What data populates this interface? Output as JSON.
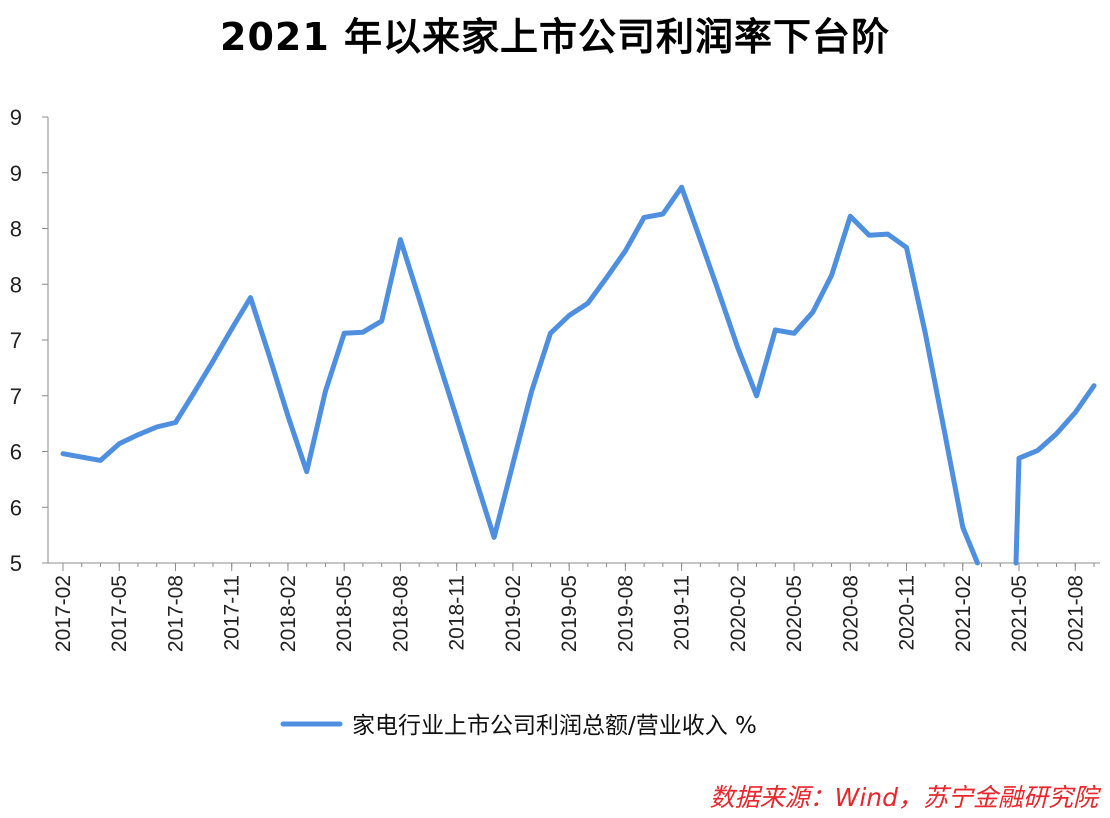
{
  "chart_data": {
    "type": "line",
    "title": "2021 年以来家上市公司利润率下台阶",
    "xlabel": "",
    "ylabel": "",
    "ylim": [
      5,
      9
    ],
    "ytick_labels": [
      "5",
      "6",
      "6",
      "7",
      "7",
      "8",
      "8",
      "9",
      "9"
    ],
    "xtick_labels": [
      "2017-02",
      "2017-05",
      "2017-08",
      "2017-11",
      "2018-02",
      "2018-05",
      "2018-08",
      "2018-11",
      "2019-02",
      "2019-05",
      "2019-08",
      "2019-11",
      "2020-02",
      "2020-05",
      "2020-08",
      "2020-11",
      "2021-02",
      "2021-05",
      "2021-08"
    ],
    "grid": false,
    "legend_position": "bottom",
    "series": [
      {
        "name": "家电行业上市公司利润总额/营业收入 %",
        "color": "#4f8fe0",
        "x": [
          "2017-02",
          "2017-03",
          "2017-04",
          "2017-05",
          "2017-06",
          "2017-07",
          "2017-08",
          "2017-09",
          "2017-10",
          "2017-11",
          "2017-12",
          "2018-01",
          "2018-02",
          "2018-03",
          "2018-04",
          "2018-05",
          "2018-06",
          "2018-07",
          "2018-08",
          "2018-09",
          "2018-10",
          "2018-11",
          "2018-12",
          "2019-01",
          "2019-02",
          "2019-03",
          "2019-04",
          "2019-05",
          "2019-06",
          "2019-07",
          "2019-08",
          "2019-09",
          "2019-10",
          "2019-11",
          "2019-12",
          "2020-01",
          "2020-02",
          "2020-03",
          "2020-04",
          "2020-05",
          "2020-06",
          "2020-07",
          "2020-08",
          "2020-09",
          "2020-10",
          "2020-11",
          "2020-12",
          "2021-01",
          "2021-02",
          "2021-03",
          "2021-04",
          "2021-05",
          "2021-06",
          "2021-07",
          "2021-08",
          "2021-09"
        ],
        "values": [
          5.98,
          5.95,
          5.92,
          6.07,
          6.15,
          6.22,
          6.26,
          6.53,
          6.81,
          7.1,
          7.38,
          6.86,
          6.32,
          5.82,
          6.54,
          7.06,
          7.07,
          7.17,
          7.9,
          7.37,
          6.83,
          6.3,
          5.76,
          5.23,
          5.89,
          6.54,
          7.06,
          7.22,
          7.33,
          7.56,
          7.8,
          8.1,
          8.13,
          8.37,
          7.9,
          7.42,
          6.93,
          6.5,
          7.09,
          7.06,
          7.25,
          7.58,
          8.11,
          7.94,
          7.95,
          7.83,
          7.06,
          6.2,
          5.32,
          null,
          null,
          5.94,
          6.01,
          6.16,
          6.35,
          6.59
        ]
      }
    ],
    "source_note": "数据来源：Wind，苏宁金融研究院"
  }
}
